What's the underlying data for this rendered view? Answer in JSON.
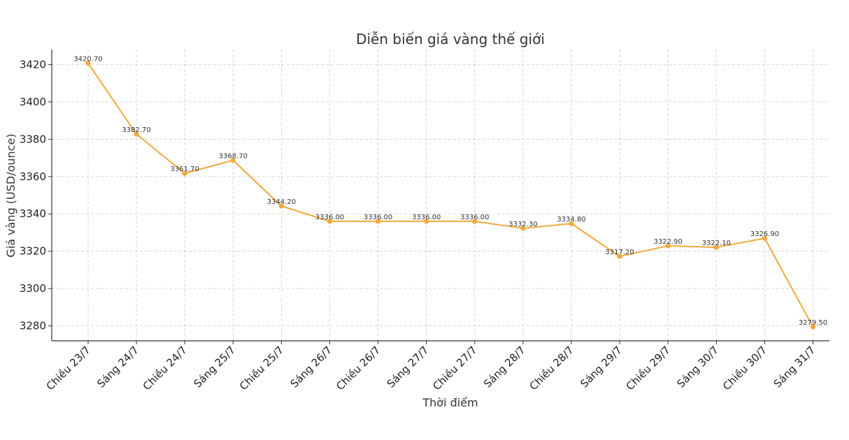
{
  "chart_data": {
    "type": "line",
    "title": "Diễn biến giá vàng thế giới",
    "xlabel": "Thời điểm",
    "ylabel": "Giá vàng (USD/ounce)",
    "categories": [
      "Chiều 23/7",
      "Sáng 24/7",
      "Chiều 24/7",
      "Sáng 25/7",
      "Chiều 25/7",
      "Sáng 26/7",
      "Chiều 26/7",
      "Sáng 27/7",
      "Chiều 27/7",
      "Sáng 28/7",
      "Chiều 28/7",
      "Sáng 29/7",
      "Chiều 29/7",
      "Sáng 30/7",
      "Chiều 30/7",
      "Sáng 31/7"
    ],
    "series": [
      {
        "values": [
          3420.7,
          3382.7,
          3361.7,
          3368.7,
          3344.2,
          3336.0,
          3336.0,
          3336.0,
          3336.0,
          3332.3,
          3334.8,
          3317.2,
          3322.9,
          3322.1,
          3326.9,
          3279.5
        ],
        "labels": [
          "3420.70",
          "3382.70",
          "3361.70",
          "3368.70",
          "3344.20",
          "3336.00",
          "3336.00",
          "3336.00",
          "3336.00",
          "3332.30",
          "3334.80",
          "3317.20",
          "3322.90",
          "3322.10",
          "3326.90",
          "3279.50"
        ],
        "color": "#f0a93b"
      }
    ],
    "yticks": [
      "3280",
      "3300",
      "3320",
      "3340",
      "3360",
      "3380",
      "3400",
      "3420"
    ],
    "ylim": [
      3272,
      3428
    ],
    "grid": true,
    "legend": "none"
  }
}
